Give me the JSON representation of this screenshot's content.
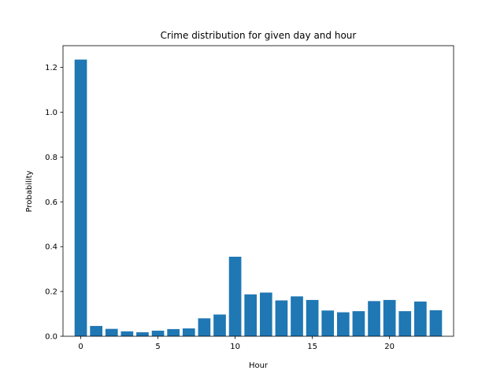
{
  "chart_data": {
    "type": "bar",
    "title": "Crime distribution for given day and hour",
    "xlabel": "Hour",
    "ylabel": "Probability",
    "x": [
      0,
      1,
      2,
      3,
      4,
      5,
      6,
      7,
      8,
      9,
      10,
      11,
      12,
      13,
      14,
      15,
      16,
      17,
      18,
      19,
      20,
      21,
      22,
      23
    ],
    "values": [
      1.235,
      0.046,
      0.033,
      0.022,
      0.018,
      0.025,
      0.032,
      0.035,
      0.08,
      0.097,
      0.355,
      0.187,
      0.195,
      0.16,
      0.178,
      0.162,
      0.115,
      0.107,
      0.112,
      0.157,
      0.162,
      0.112,
      0.155,
      0.116
    ],
    "xlim": [
      -1.15,
      24.15
    ],
    "ylim": [
      0,
      1.297
    ],
    "xticks": [
      0,
      5,
      10,
      15,
      20
    ],
    "xtick_labels": [
      "0",
      "5",
      "10",
      "15",
      "20"
    ],
    "yticks": [
      0.0,
      0.2,
      0.4,
      0.6,
      0.8,
      1.0,
      1.2
    ],
    "ytick_labels": [
      "0.0",
      "0.2",
      "0.4",
      "0.6",
      "0.8",
      "1.0",
      "1.2"
    ],
    "bar_color": "#1f77b4",
    "grid": false,
    "legend": "none"
  }
}
